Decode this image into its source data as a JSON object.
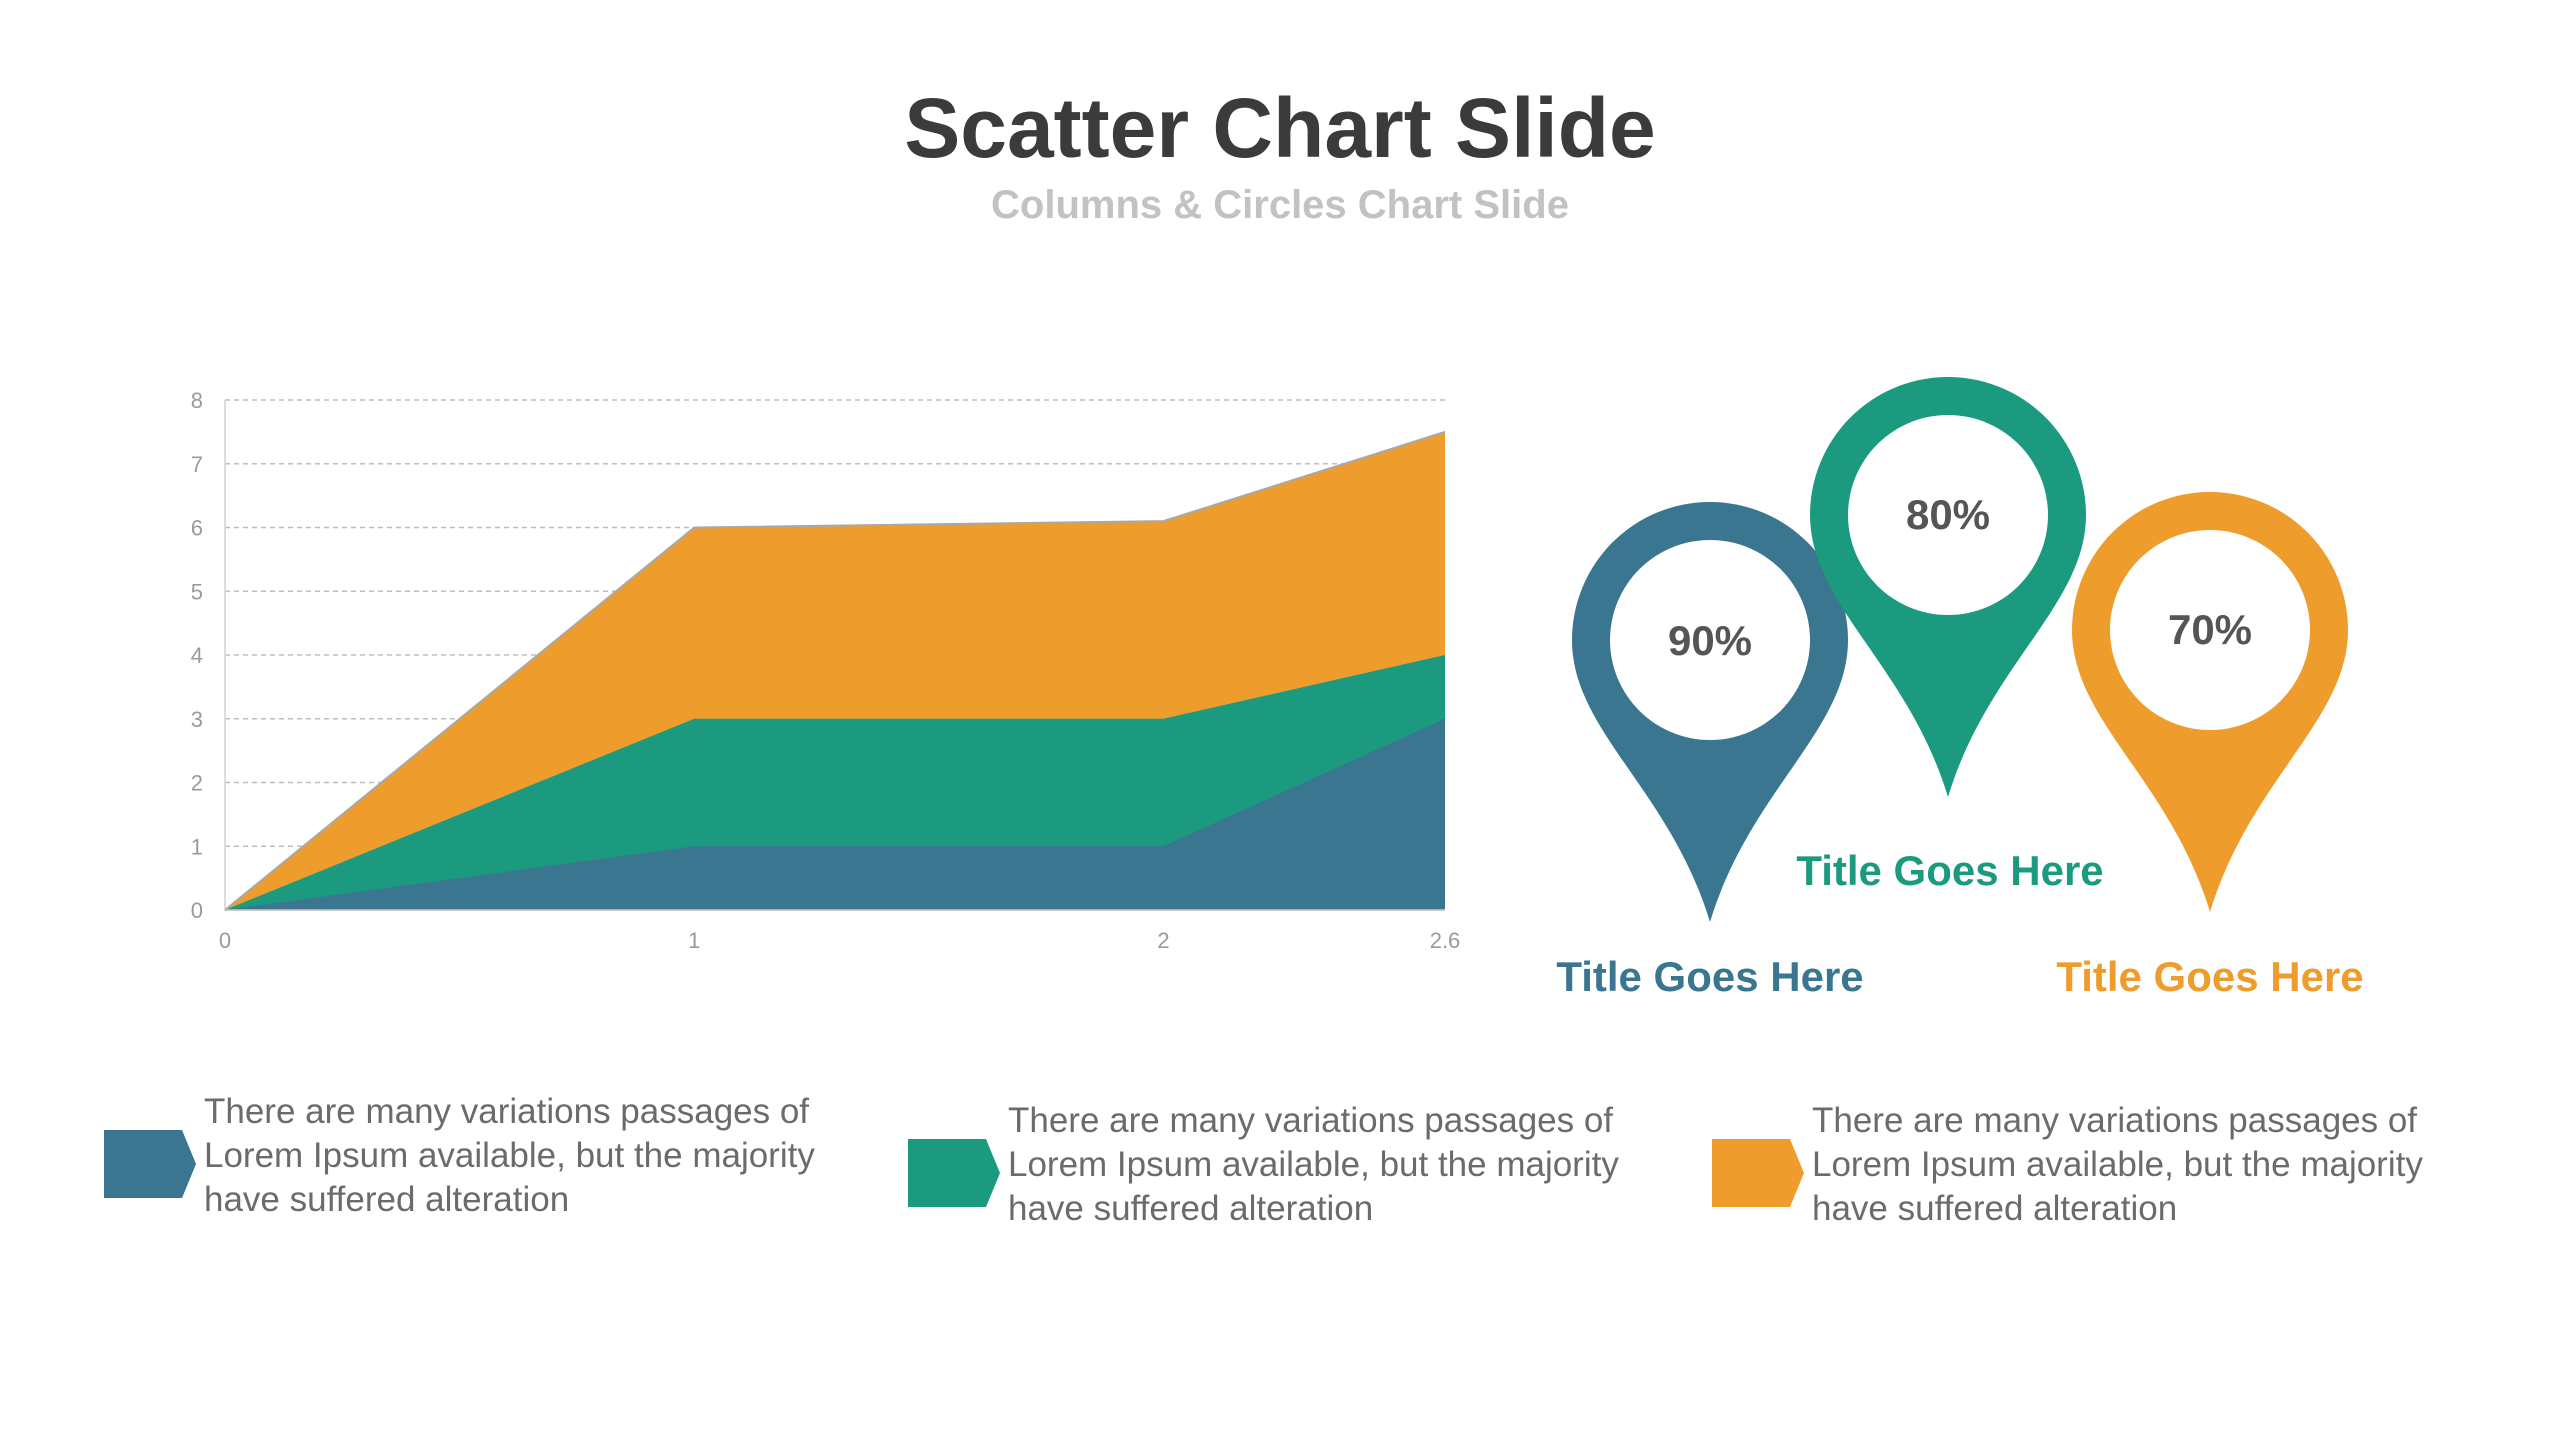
{
  "slide": {
    "title": "Scatter Chart Slide",
    "subtitle": "Columns & Circles Chart Slide"
  },
  "colors": {
    "blue": "#3a7690",
    "teal": "#1b9a80",
    "orange": "#ee9c2c",
    "grid": "#bdbdbd",
    "tick": "#9a9a9a"
  },
  "chart_data": {
    "type": "area",
    "stacked": true,
    "x": [
      0,
      1,
      2,
      2.6
    ],
    "x_tick_labels": [
      "0",
      "1",
      "2",
      "2.6"
    ],
    "y_tick_labels": [
      "0",
      "1",
      "2",
      "3",
      "4",
      "5",
      "6",
      "7",
      "8"
    ],
    "ylim": [
      0,
      8
    ],
    "xlim": [
      0,
      2.6
    ],
    "grid": "horizontal dashed",
    "series": [
      {
        "values": [
          0,
          1,
          1,
          3
        ],
        "color": "#3a7690"
      },
      {
        "values": [
          0,
          2,
          2,
          1
        ],
        "color": "#1b9a80"
      },
      {
        "values": [
          0,
          3,
          3.1,
          3.5
        ],
        "color": "#ee9c2c"
      }
    ]
  },
  "pins": [
    {
      "percent": "90%",
      "title": "Title Goes Here",
      "color": "#3a7690"
    },
    {
      "percent": "80%",
      "title": "Title Goes Here",
      "color": "#1b9a80"
    },
    {
      "percent": "70%",
      "title": "Title Goes Here",
      "color": "#ee9c2c"
    }
  ],
  "descriptions": [
    {
      "text": "There are many variations passages of Lorem Ipsum available, but the majority have suffered alteration",
      "color": "#3a7690"
    },
    {
      "text": "There are many variations passages of Lorem Ipsum available, but the majority have suffered alteration",
      "color": "#1b9a80"
    },
    {
      "text": "There are many variations passages of Lorem Ipsum available, but the majority have suffered alteration",
      "color": "#ee9c2c"
    }
  ]
}
